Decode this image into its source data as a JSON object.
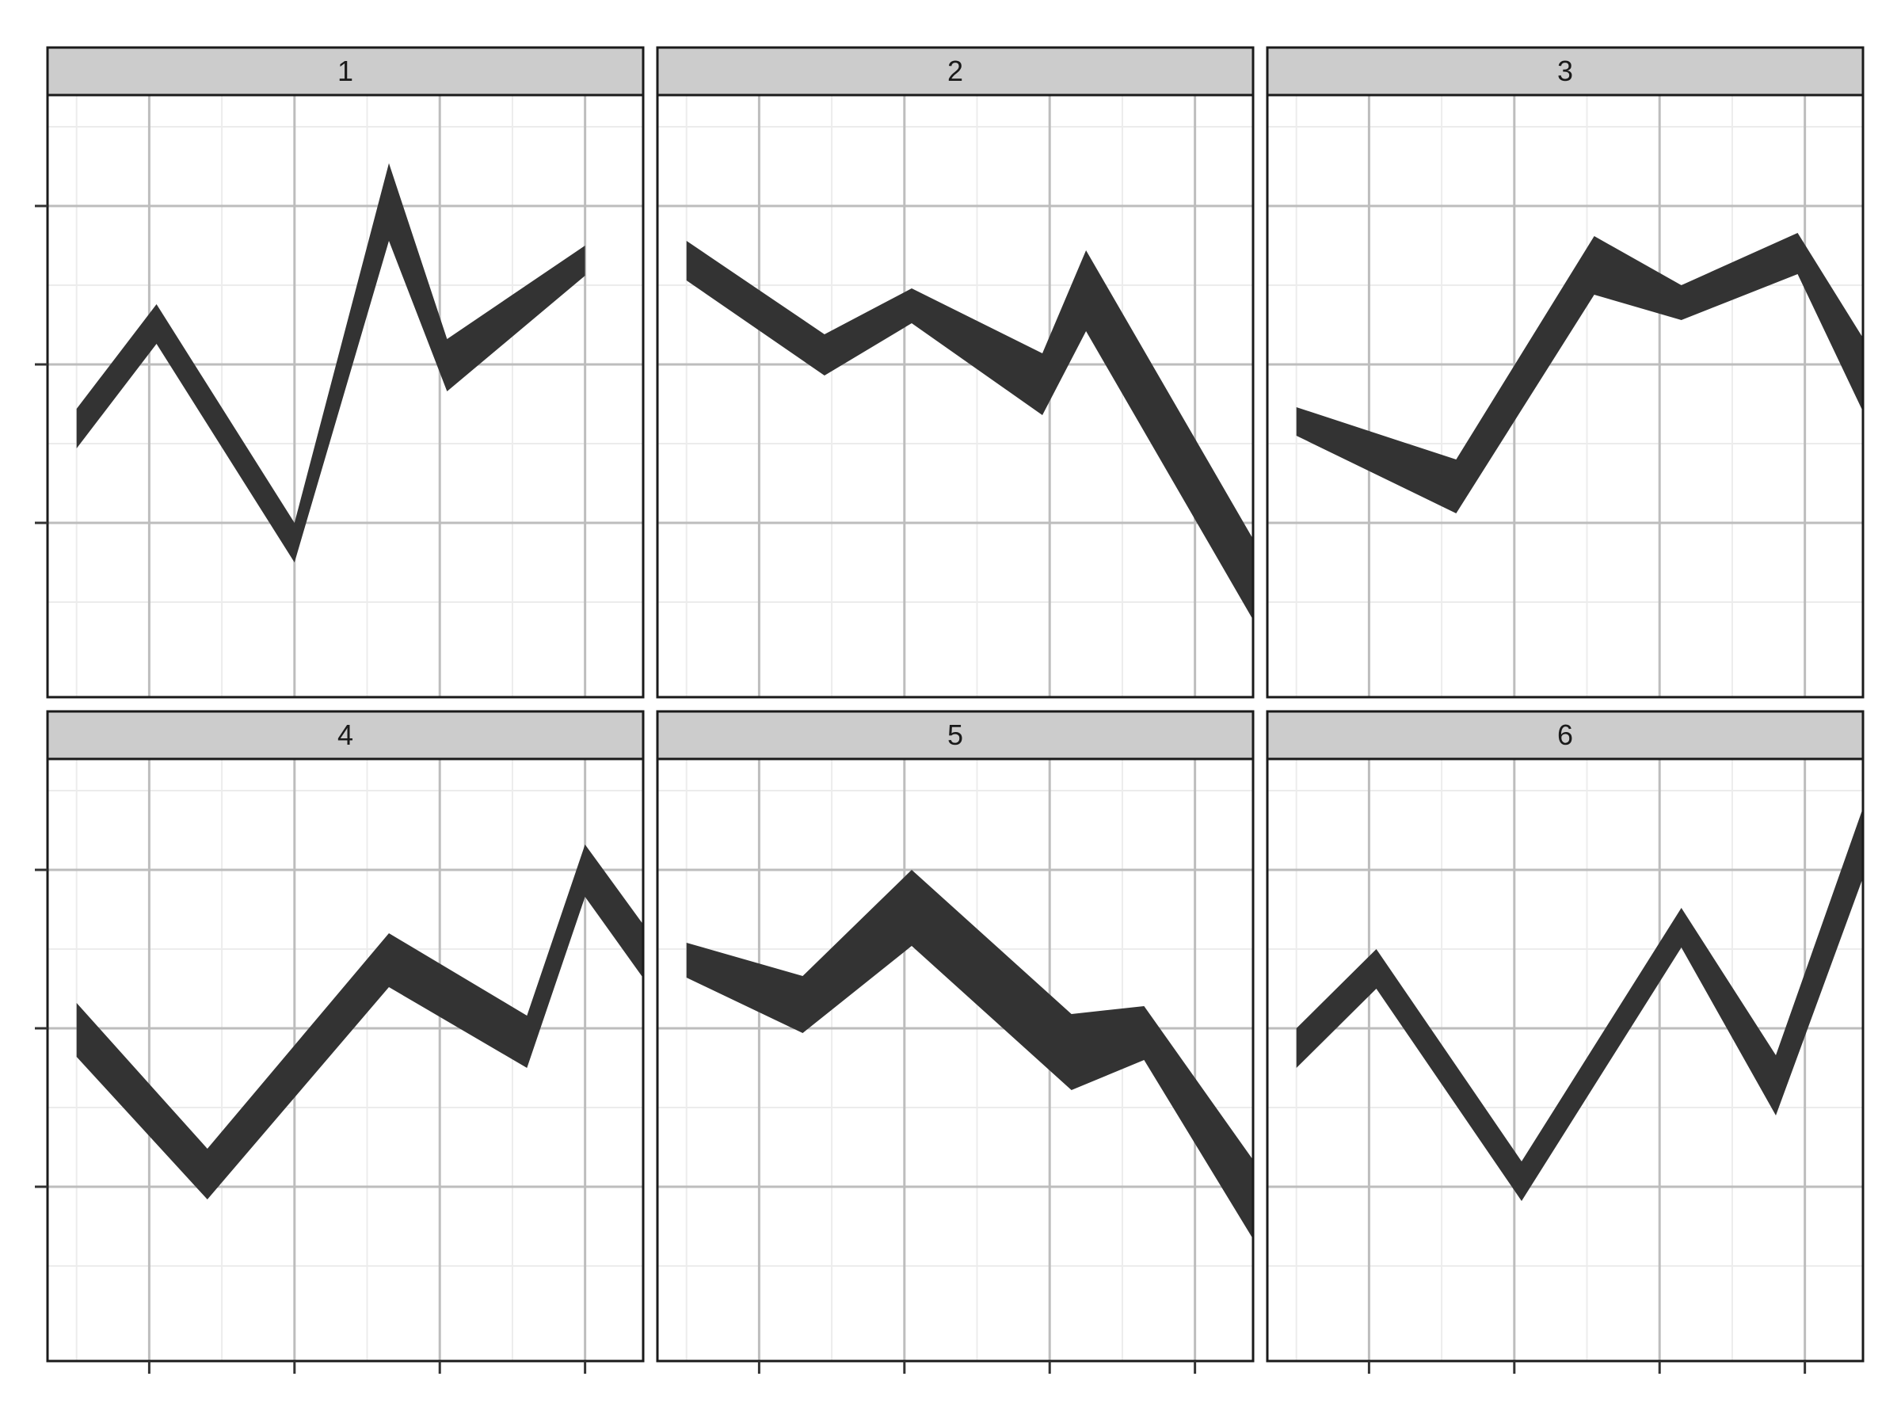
{
  "chart_data": {
    "type": "area",
    "layout": {
      "rows": 2,
      "cols": 3
    },
    "xlim": [
      0.6,
      8.8
    ],
    "ylim": [
      -2.1,
      1.7
    ],
    "x_breaks_major": [
      2,
      4,
      6,
      8
    ],
    "x_breaks_minor": [
      1,
      3,
      5,
      7
    ],
    "y_breaks_major": [
      -1,
      0,
      1
    ],
    "y_breaks_minor": [
      -1.5,
      -0.5,
      0.5,
      1.5
    ],
    "fill_color": "#333333",
    "strip_fill": "#cccccc",
    "panel_border": "#1a1a1a",
    "grid_major": "#bdbdbd",
    "grid_minor": "#ececec",
    "panels": [
      {
        "label": "1",
        "x": [
          1,
          2.1,
          4,
          5.3,
          6.1,
          8
        ],
        "ymin": [
          -0.53,
          0.13,
          -1.25,
          0.78,
          -0.17,
          0.56
        ],
        "ymax": [
          -0.28,
          0.38,
          -1.0,
          1.27,
          0.16,
          0.75
        ]
      },
      {
        "label": "2",
        "x": [
          1,
          2.9,
          4.1,
          5.9,
          6.5,
          9
        ],
        "ymin": [
          0.53,
          -0.07,
          0.26,
          -0.32,
          0.21,
          -1.77
        ],
        "ymax": [
          0.78,
          0.19,
          0.48,
          0.07,
          0.72,
          -1.26
        ]
      },
      {
        "label": "3",
        "x": [
          1,
          3.2,
          5.1,
          6.3,
          7.9,
          9
        ],
        "ymin": [
          -0.45,
          -0.94,
          0.44,
          0.28,
          0.57,
          -0.49
        ],
        "ymax": [
          -0.27,
          -0.6,
          0.81,
          0.5,
          0.83,
          0.02
        ]
      },
      {
        "label": "4",
        "x": [
          1,
          2.8,
          5.3,
          7.2,
          8.0,
          9
        ],
        "ymin": [
          -0.18,
          -1.08,
          0.26,
          -0.25,
          0.83,
          0.19
        ],
        "ymax": [
          0.16,
          -0.76,
          0.6,
          0.08,
          1.16,
          0.53
        ]
      },
      {
        "label": "5",
        "x": [
          1,
          2.6,
          4.1,
          6.3,
          7.3,
          9
        ],
        "ymin": [
          0.32,
          -0.03,
          0.52,
          -0.39,
          -0.2,
          -1.48
        ],
        "ymax": [
          0.54,
          0.33,
          1.0,
          0.09,
          0.14,
          -0.96
        ]
      },
      {
        "label": "6",
        "x": [
          1,
          2.1,
          4.1,
          6.3,
          7.6,
          9
        ],
        "ymin": [
          -0.25,
          0.25,
          -1.09,
          0.51,
          -0.55,
          1.2
        ],
        "ymax": [
          0.0,
          0.5,
          -0.84,
          0.76,
          -0.17,
          1.65
        ]
      }
    ]
  }
}
